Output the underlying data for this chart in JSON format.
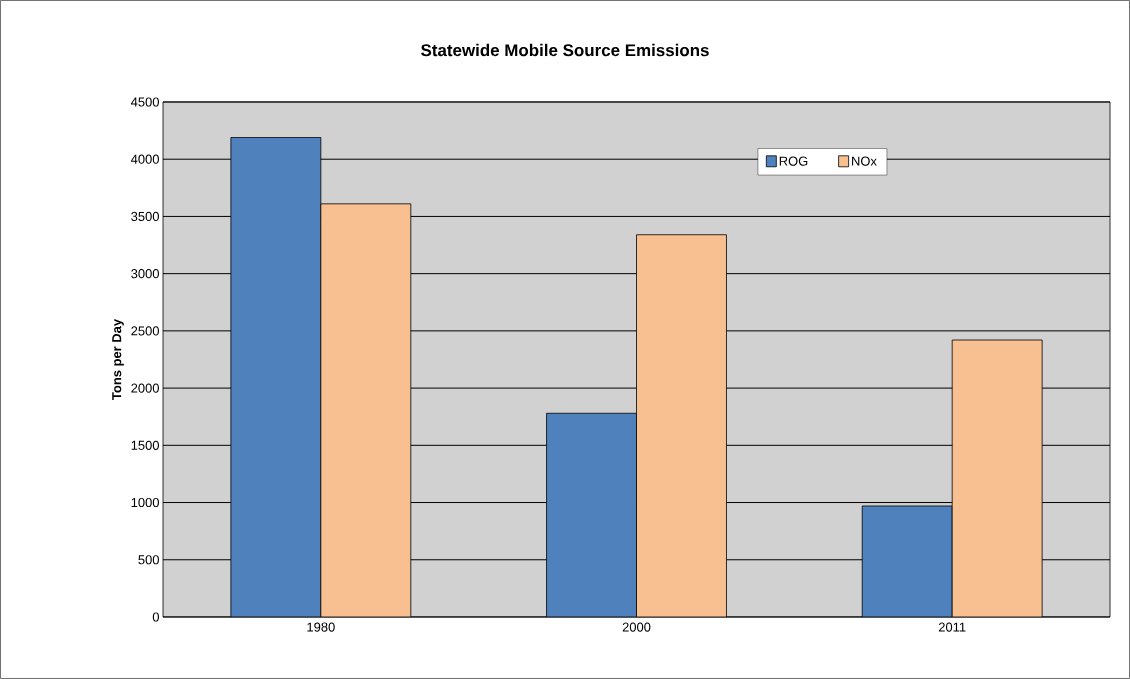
{
  "chart_data": {
    "type": "bar",
    "title": "Statewide Mobile Source Emissions",
    "ylabel": "Tons per Day",
    "categories": [
      "1980",
      "2000",
      "2011"
    ],
    "series": [
      {
        "name": "ROG",
        "color": "#4f81bd",
        "values": [
          4190,
          1780,
          970
        ]
      },
      {
        "name": "NOx",
        "color": "#f8c090",
        "values": [
          3610,
          3340,
          2420
        ]
      }
    ],
    "ylim": [
      0,
      4500
    ],
    "yticks": [
      0,
      500,
      1000,
      1500,
      2000,
      2500,
      3000,
      3500,
      4000,
      4500
    ],
    "grid": "y",
    "legend": "top right"
  }
}
